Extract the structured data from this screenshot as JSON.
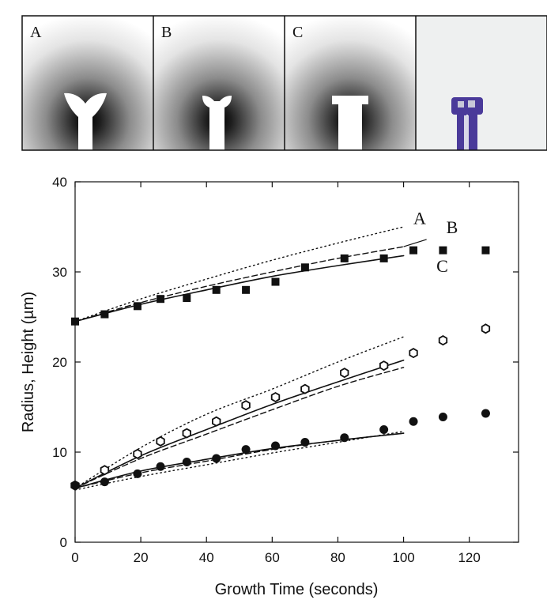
{
  "panels": [
    {
      "id": "A",
      "label": "A",
      "kind": "simulation"
    },
    {
      "id": "B",
      "label": "B",
      "kind": "simulation"
    },
    {
      "id": "C",
      "label": "C",
      "kind": "simulation"
    },
    {
      "id": "photo",
      "label": "",
      "kind": "micrograph"
    }
  ],
  "colors": {
    "ink": "#111111",
    "photo_bg": "#eef0f0",
    "photo_structure": "#4a3a9a"
  },
  "chart_data": {
    "type": "scatter",
    "title": "",
    "xlabel": "Growth Time (seconds)",
    "ylabel": "Radius, Height (µm)",
    "xlim": [
      0,
      135
    ],
    "ylim": [
      0,
      40
    ],
    "xticks": [
      0,
      20,
      40,
      60,
      80,
      100,
      120
    ],
    "yticks": [
      0,
      10,
      20,
      30,
      40
    ],
    "grid": false,
    "series": [
      {
        "name": "height",
        "marker": "filled-square",
        "x": [
          0,
          9,
          19,
          26,
          34,
          43,
          52,
          61,
          70,
          82,
          94,
          103,
          112,
          125
        ],
        "y": [
          24.5,
          25.3,
          26.2,
          27.0,
          27.1,
          28.0,
          28.0,
          28.9,
          30.5,
          31.5,
          31.5,
          32.4,
          32.4,
          32.4
        ]
      },
      {
        "name": "top radius",
        "marker": "open-hexagon",
        "x": [
          0,
          9,
          19,
          26,
          34,
          43,
          52,
          61,
          70,
          82,
          94,
          103,
          112,
          125
        ],
        "y": [
          6.3,
          8.0,
          9.8,
          11.2,
          12.1,
          13.4,
          15.2,
          16.1,
          17.0,
          18.8,
          19.6,
          21.0,
          22.4,
          23.7
        ]
      },
      {
        "name": "stem radius",
        "marker": "filled-circle",
        "x": [
          0,
          9,
          19,
          26,
          34,
          43,
          52,
          61,
          70,
          82,
          94,
          103,
          112,
          125
        ],
        "y": [
          6.3,
          6.7,
          7.6,
          8.4,
          8.9,
          9.3,
          10.3,
          10.7,
          11.1,
          11.6,
          12.5,
          13.4,
          13.9,
          14.3
        ]
      }
    ],
    "model_curves": [
      {
        "name": "A height",
        "style": "dotted",
        "x": [
          0,
          20,
          40,
          60,
          80,
          100
        ],
        "y": [
          24.5,
          27.0,
          29.2,
          31.3,
          33.2,
          35.0
        ]
      },
      {
        "name": "B height",
        "style": "dashed",
        "x": [
          0,
          20,
          40,
          60,
          80,
          100
        ],
        "y": [
          24.5,
          26.6,
          28.4,
          30.0,
          31.5,
          32.8
        ]
      },
      {
        "name": "C height",
        "style": "solid",
        "x": [
          0,
          20,
          40,
          60,
          80,
          100
        ],
        "y": [
          24.5,
          26.4,
          28.0,
          29.5,
          30.7,
          31.8
        ]
      },
      {
        "name": "A top radius",
        "style": "dotted",
        "x": [
          0,
          20,
          40,
          60,
          80,
          100
        ],
        "y": [
          6.0,
          10.5,
          14.2,
          17.0,
          20.0,
          22.8
        ]
      },
      {
        "name": "B top radius",
        "style": "dashed",
        "x": [
          0,
          20,
          40,
          60,
          80,
          100
        ],
        "y": [
          6.0,
          9.3,
          12.0,
          14.7,
          17.3,
          19.4
        ]
      },
      {
        "name": "C top radius",
        "style": "solid",
        "x": [
          0,
          20,
          40,
          60,
          80,
          100
        ],
        "y": [
          6.0,
          9.6,
          12.5,
          15.3,
          17.8,
          20.2
        ]
      },
      {
        "name": "A stem radius",
        "style": "dotted",
        "x": [
          0,
          20,
          40,
          60,
          80,
          100
        ],
        "y": [
          5.8,
          7.3,
          8.6,
          9.9,
          11.1,
          12.3
        ]
      },
      {
        "name": "B stem radius",
        "style": "dashed",
        "x": [
          0,
          20,
          40,
          60,
          80,
          100
        ],
        "y": [
          6.0,
          7.7,
          9.0,
          10.3,
          11.3,
          12.1
        ]
      },
      {
        "name": "C stem radius",
        "style": "solid",
        "x": [
          0,
          20,
          40,
          60,
          80,
          100
        ],
        "y": [
          6.0,
          7.9,
          9.2,
          10.4,
          11.3,
          12.1
        ]
      }
    ],
    "annotations": [
      {
        "text": "A",
        "x": 103,
        "y": 35.3
      },
      {
        "text": "B",
        "x": 113,
        "y": 34.3
      },
      {
        "text": "C",
        "x": 110,
        "y": 30.0
      }
    ],
    "leader_line": {
      "from": [
        107,
        33.6
      ],
      "to": [
        100,
        32.8
      ]
    }
  }
}
